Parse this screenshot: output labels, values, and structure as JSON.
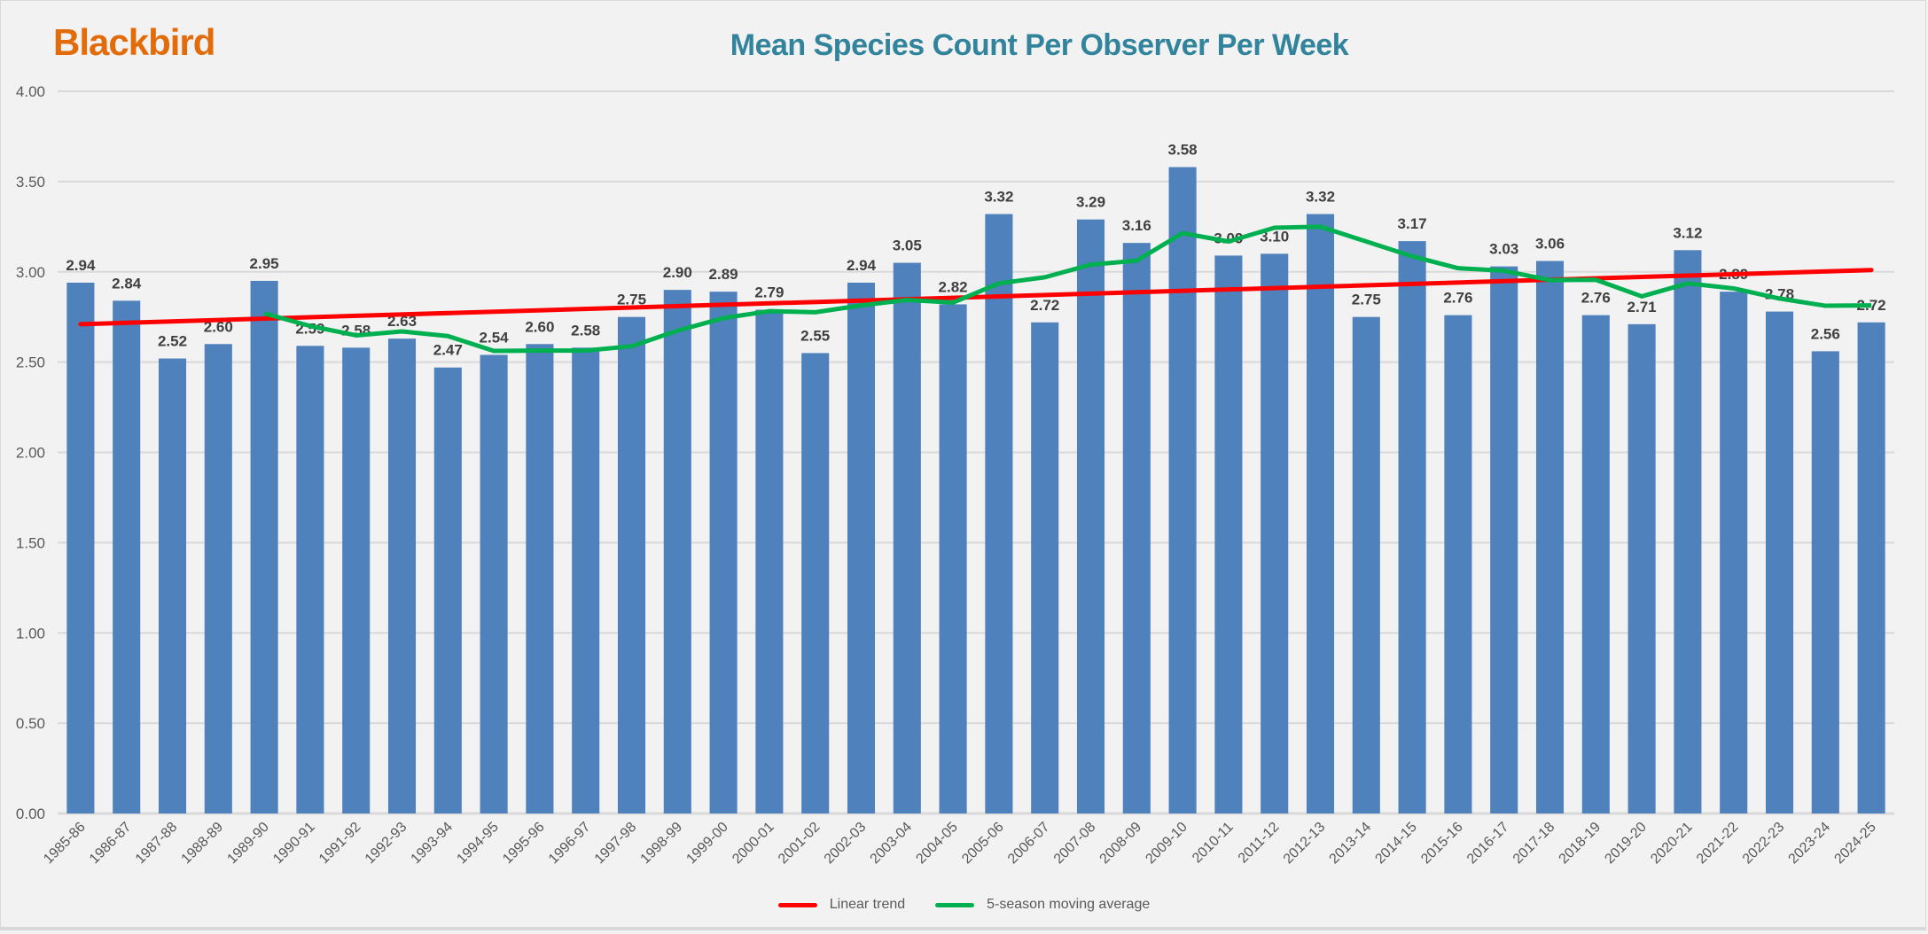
{
  "chart_data": {
    "type": "bar",
    "species": "Blackbird",
    "title": "Mean Species Count Per Observer Per Week",
    "xlabel": "",
    "ylabel": "",
    "ylim": [
      0,
      4
    ],
    "yticks": [
      "0.00",
      "0.50",
      "1.00",
      "1.50",
      "2.00",
      "2.50",
      "3.00",
      "3.50",
      "4.00"
    ],
    "grid": true,
    "legend_position": "bottom",
    "categories": [
      "1985-86",
      "1986-87",
      "1987-88",
      "1988-89",
      "1989-90",
      "1990-91",
      "1991-92",
      "1992-93",
      "1993-94",
      "1994-95",
      "1995-96",
      "1996-97",
      "1997-98",
      "1998-99",
      "1999-00",
      "2000-01",
      "2001-02",
      "2002-03",
      "2003-04",
      "2004-05",
      "2005-06",
      "2006-07",
      "2007-08",
      "2008-09",
      "2009-10",
      "2010-11",
      "2011-12",
      "2012-13",
      "2013-14",
      "2014-15",
      "2015-16",
      "2016-17",
      "2017-18",
      "2018-19",
      "2019-20",
      "2020-21",
      "2021-22",
      "2022-23",
      "2023-24",
      "2024-25"
    ],
    "values": [
      2.94,
      2.84,
      2.52,
      2.6,
      2.95,
      2.59,
      2.58,
      2.63,
      2.47,
      2.54,
      2.6,
      2.58,
      2.75,
      2.9,
      2.89,
      2.79,
      2.55,
      2.94,
      3.05,
      2.82,
      3.32,
      2.72,
      3.29,
      3.16,
      3.58,
      3.09,
      3.1,
      3.32,
      2.75,
      3.17,
      2.76,
      3.03,
      3.06,
      2.76,
      2.71,
      3.12,
      2.89,
      2.78,
      2.56,
      2.72
    ],
    "series": [
      {
        "name": "Linear trend",
        "type": "line",
        "color": "#ff0000",
        "start": 2.71,
        "end": 3.01
      },
      {
        "name": "5-season moving average",
        "type": "line",
        "color": "#00b050",
        "values": [
          null,
          null,
          null,
          null,
          2.77,
          2.7,
          2.648,
          2.67,
          2.644,
          2.562,
          2.564,
          2.564,
          2.588,
          2.674,
          2.744,
          2.782,
          2.776,
          2.814,
          2.844,
          2.83,
          2.936,
          2.97,
          3.04,
          3.062,
          3.214,
          3.168,
          3.244,
          3.25,
          3.168,
          3.086,
          3.02,
          3.006,
          2.954,
          2.956,
          2.864,
          2.936,
          2.908,
          2.852,
          2.812,
          2.814
        ]
      }
    ],
    "colors": {
      "bar": "#4f81bd",
      "species": "#e36c0a",
      "title": "#31849b"
    }
  }
}
